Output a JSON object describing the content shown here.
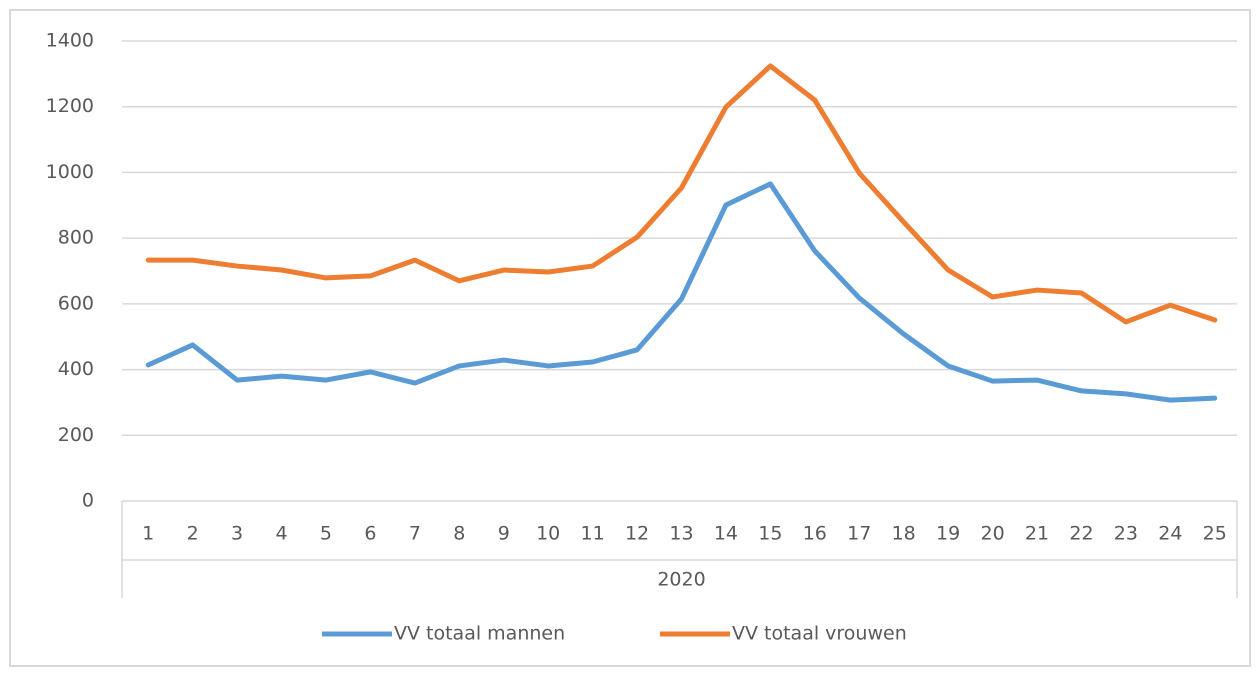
{
  "chart_data": {
    "type": "line",
    "categories": [
      "1",
      "2",
      "3",
      "4",
      "5",
      "6",
      "7",
      "8",
      "9",
      "10",
      "11",
      "12",
      "13",
      "14",
      "15",
      "16",
      "17",
      "18",
      "19",
      "20",
      "21",
      "22",
      "23",
      "24",
      "25"
    ],
    "category_group": "2020",
    "series": [
      {
        "name": "VV totaal mannen",
        "color": "#5b9bd5",
        "values": [
          414,
          475,
          368,
          380,
          368,
          393,
          359,
          411,
          429,
          411,
          423,
          460,
          615,
          901,
          965,
          761,
          618,
          508,
          411,
          365,
          368,
          335,
          326,
          307,
          313
        ]
      },
      {
        "name": "VV totaal vrouwen",
        "color": "#ed7d31",
        "values": [
          733,
          733,
          715,
          703,
          679,
          685,
          733,
          670,
          703,
          697,
          715,
          803,
          953,
          1199,
          1324,
          1220,
          998,
          849,
          703,
          621,
          642,
          633,
          545,
          596,
          551
        ]
      }
    ],
    "ylim": [
      0,
      1400
    ],
    "yticks": [
      0,
      200,
      400,
      600,
      800,
      1000,
      1200,
      1400
    ],
    "grid": true,
    "legend": "bottom"
  }
}
